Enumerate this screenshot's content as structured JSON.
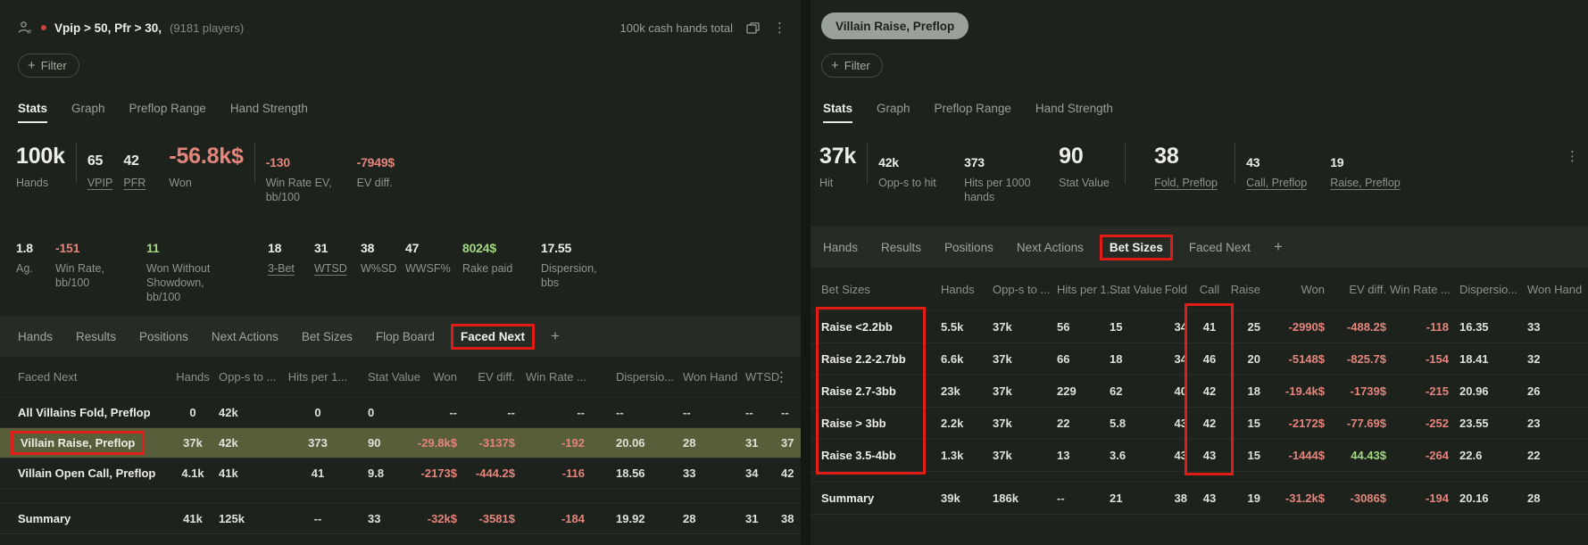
{
  "style": {
    "annotation_box_color": "#e11b15",
    "negative_text": "#e4857b",
    "positive_text": "#a3d781",
    "highlight_row": "#585e3a"
  },
  "left_panel": {
    "titlebar": {
      "title": "Vpip > 50, Pfr > 30,",
      "players": "(9181 players)",
      "hands_total": "100k cash hands total"
    },
    "filter_label": "Filter",
    "view_tabs": [
      {
        "label": "Stats",
        "active": true
      },
      {
        "label": "Graph"
      },
      {
        "label": "Preflop Range"
      },
      {
        "label": "Hand Strength"
      }
    ],
    "stats_primary": [
      {
        "value": "100k",
        "label": "Hands",
        "size": "big"
      },
      {
        "sep": true
      },
      {
        "value": "65",
        "label": "VPIP",
        "size": "med",
        "underline": true
      },
      {
        "value": "42",
        "label": "PFR",
        "size": "med",
        "underline": true
      },
      {
        "value": "-56.8k$",
        "label": "Won",
        "size": "big",
        "color": "red"
      },
      {
        "sep": true
      },
      {
        "value": "-130",
        "label": "Win Rate EV,\nbb/100",
        "color": "red"
      },
      {
        "value": "-7949$",
        "label": "EV diff.",
        "color": "red"
      }
    ],
    "stats_secondary": [
      {
        "value": "1.8",
        "label": "Ag."
      },
      {
        "value": "-151",
        "label": "Win Rate,\nbb/100",
        "color": "red"
      },
      {
        "value": "11",
        "label": "Won Without\nShowdown,\nbb/100",
        "color": "green"
      },
      {
        "value": "18",
        "label": "3-Bet",
        "underline": true
      },
      {
        "value": "31",
        "label": "WTSD",
        "underline": true
      },
      {
        "value": "38",
        "label": "W%SD"
      },
      {
        "value": "47",
        "label": "WWSF%"
      },
      {
        "value": "8024$",
        "label": "Rake paid",
        "color": "green"
      },
      {
        "value": "17.55",
        "label": "Dispersion,\nbbs"
      }
    ],
    "table": {
      "tabs": [
        {
          "label": "Hands"
        },
        {
          "label": "Results"
        },
        {
          "label": "Positions"
        },
        {
          "label": "Next Actions"
        },
        {
          "label": "Bet Sizes"
        },
        {
          "label": "Flop Board"
        },
        {
          "label": "Faced Next",
          "active": true,
          "boxed": true
        },
        {
          "label": "+",
          "add": true
        }
      ],
      "columns": [
        "Faced Next",
        "Hands",
        "Opp-s to ...",
        "Hits per 1...",
        "Stat Value",
        "Won",
        "EV diff.",
        "Win Rate ...",
        "Dispersio...",
        "Won Hand",
        "WTSD",
        ""
      ],
      "rows": [
        {
          "label": "All Villains Fold, Preflop",
          "values": [
            "0",
            "42k",
            "0",
            "0",
            "--",
            "--",
            "--",
            "--",
            "--",
            "--",
            "--"
          ],
          "colors": [
            "",
            "",
            "",
            "",
            "",
            "",
            "",
            "",
            "",
            "",
            ""
          ]
        },
        {
          "label": "Villain Raise, Preflop",
          "boxed": true,
          "highlight": true,
          "values": [
            "37k",
            "42k",
            "373",
            "90",
            "-29.8k$",
            "-3137$",
            "-192",
            "20.06",
            "28",
            "31",
            "37"
          ],
          "colors": [
            "",
            "",
            "",
            "",
            "red",
            "red",
            "red",
            "",
            "",
            "",
            ""
          ]
        },
        {
          "label": "Villain Open Call, Preflop",
          "values": [
            "4.1k",
            "41k",
            "41",
            "9.8",
            "-2173$",
            "-444.2$",
            "-116",
            "18.56",
            "33",
            "34",
            "42"
          ],
          "colors": [
            "",
            "",
            "",
            "",
            "red",
            "red",
            "red",
            "",
            "",
            "",
            ""
          ]
        },
        {
          "label": "Summary",
          "summary": true,
          "values": [
            "41k",
            "125k",
            "--",
            "33",
            "-32k$",
            "-3581$",
            "-184",
            "19.92",
            "28",
            "31",
            "38"
          ],
          "colors": [
            "",
            "",
            "",
            "",
            "red",
            "red",
            "red",
            "",
            "",
            "",
            ""
          ]
        }
      ]
    }
  },
  "right_panel": {
    "chip": "Villain Raise, Preflop",
    "filter_label": "Filter",
    "view_tabs": [
      {
        "label": "Stats",
        "active": true
      },
      {
        "label": "Graph"
      },
      {
        "label": "Preflop Range"
      },
      {
        "label": "Hand Strength"
      }
    ],
    "stats_primary": [
      {
        "value": "37k",
        "label": "Hit",
        "size": "big"
      },
      {
        "sep": true
      },
      {
        "value": "42k",
        "label": "Opp-s to hit"
      },
      {
        "value": "373",
        "label": "Hits per 1000\nhands"
      },
      {
        "value": "90",
        "label": "Stat Value",
        "size": "big"
      },
      {
        "sep": true
      },
      {
        "value": "38",
        "label": "Fold, Preflop",
        "size": "big",
        "underline": true
      },
      {
        "sep": true
      },
      {
        "value": "43",
        "label": "Call, Preflop",
        "underline": true
      },
      {
        "value": "19",
        "label": "Raise, Preflop",
        "underline": true
      }
    ],
    "table": {
      "tabs": [
        {
          "label": "Hands"
        },
        {
          "label": "Results"
        },
        {
          "label": "Positions"
        },
        {
          "label": "Next Actions"
        },
        {
          "label": "Bet Sizes",
          "active": true,
          "boxed": true
        },
        {
          "label": "Faced Next"
        },
        {
          "label": "+",
          "add": true
        }
      ],
      "columns": [
        "Bet Sizes",
        "Hands",
        "Opp-s to ...",
        "Hits per 1...",
        "Stat Value",
        "Fold",
        "Call",
        "Raise",
        "Won",
        "EV diff.",
        "Win Rate ...",
        "Dispersio...",
        "Won Hand"
      ],
      "rows": [
        {
          "label": "Raise <2.2bb",
          "values": [
            "5.5k",
            "37k",
            "56",
            "15",
            "34",
            "41",
            "25",
            "-2990$",
            "-488.2$",
            "-118",
            "16.35",
            "33"
          ],
          "colors": [
            "",
            "",
            "",
            "",
            "",
            "",
            "",
            "red",
            "red",
            "red",
            "",
            ""
          ]
        },
        {
          "label": "Raise 2.2-2.7bb",
          "values": [
            "6.6k",
            "37k",
            "66",
            "18",
            "34",
            "46",
            "20",
            "-5148$",
            "-825.7$",
            "-154",
            "18.41",
            "32"
          ],
          "colors": [
            "",
            "",
            "",
            "",
            "",
            "",
            "",
            "red",
            "red",
            "red",
            "",
            ""
          ]
        },
        {
          "label": "Raise 2.7-3bb",
          "values": [
            "23k",
            "37k",
            "229",
            "62",
            "40",
            "42",
            "18",
            "-19.4k$",
            "-1739$",
            "-215",
            "20.96",
            "26"
          ],
          "colors": [
            "",
            "",
            "",
            "",
            "",
            "",
            "",
            "red",
            "red",
            "red",
            "",
            ""
          ]
        },
        {
          "label": "Raise > 3bb",
          "values": [
            "2.2k",
            "37k",
            "22",
            "5.8",
            "43",
            "42",
            "15",
            "-2172$",
            "-77.69$",
            "-252",
            "23.55",
            "23"
          ],
          "colors": [
            "",
            "",
            "",
            "",
            "",
            "",
            "",
            "red",
            "red",
            "red",
            "",
            ""
          ]
        },
        {
          "label": "Raise 3.5-4bb",
          "values": [
            "1.3k",
            "37k",
            "13",
            "3.6",
            "43",
            "43",
            "15",
            "-1444$",
            "44.43$",
            "-264",
            "22.6",
            "22"
          ],
          "colors": [
            "",
            "",
            "",
            "",
            "",
            "",
            "",
            "red",
            "green",
            "red",
            "",
            ""
          ]
        },
        {
          "label": "Summary",
          "summary": true,
          "values": [
            "39k",
            "186k",
            "--",
            "21",
            "38",
            "43",
            "19",
            "-31.2k$",
            "-3086$",
            "-194",
            "20.16",
            "28"
          ],
          "colors": [
            "",
            "",
            "",
            "",
            "",
            "",
            "",
            "red",
            "red",
            "red",
            "",
            ""
          ]
        }
      ]
    }
  }
}
